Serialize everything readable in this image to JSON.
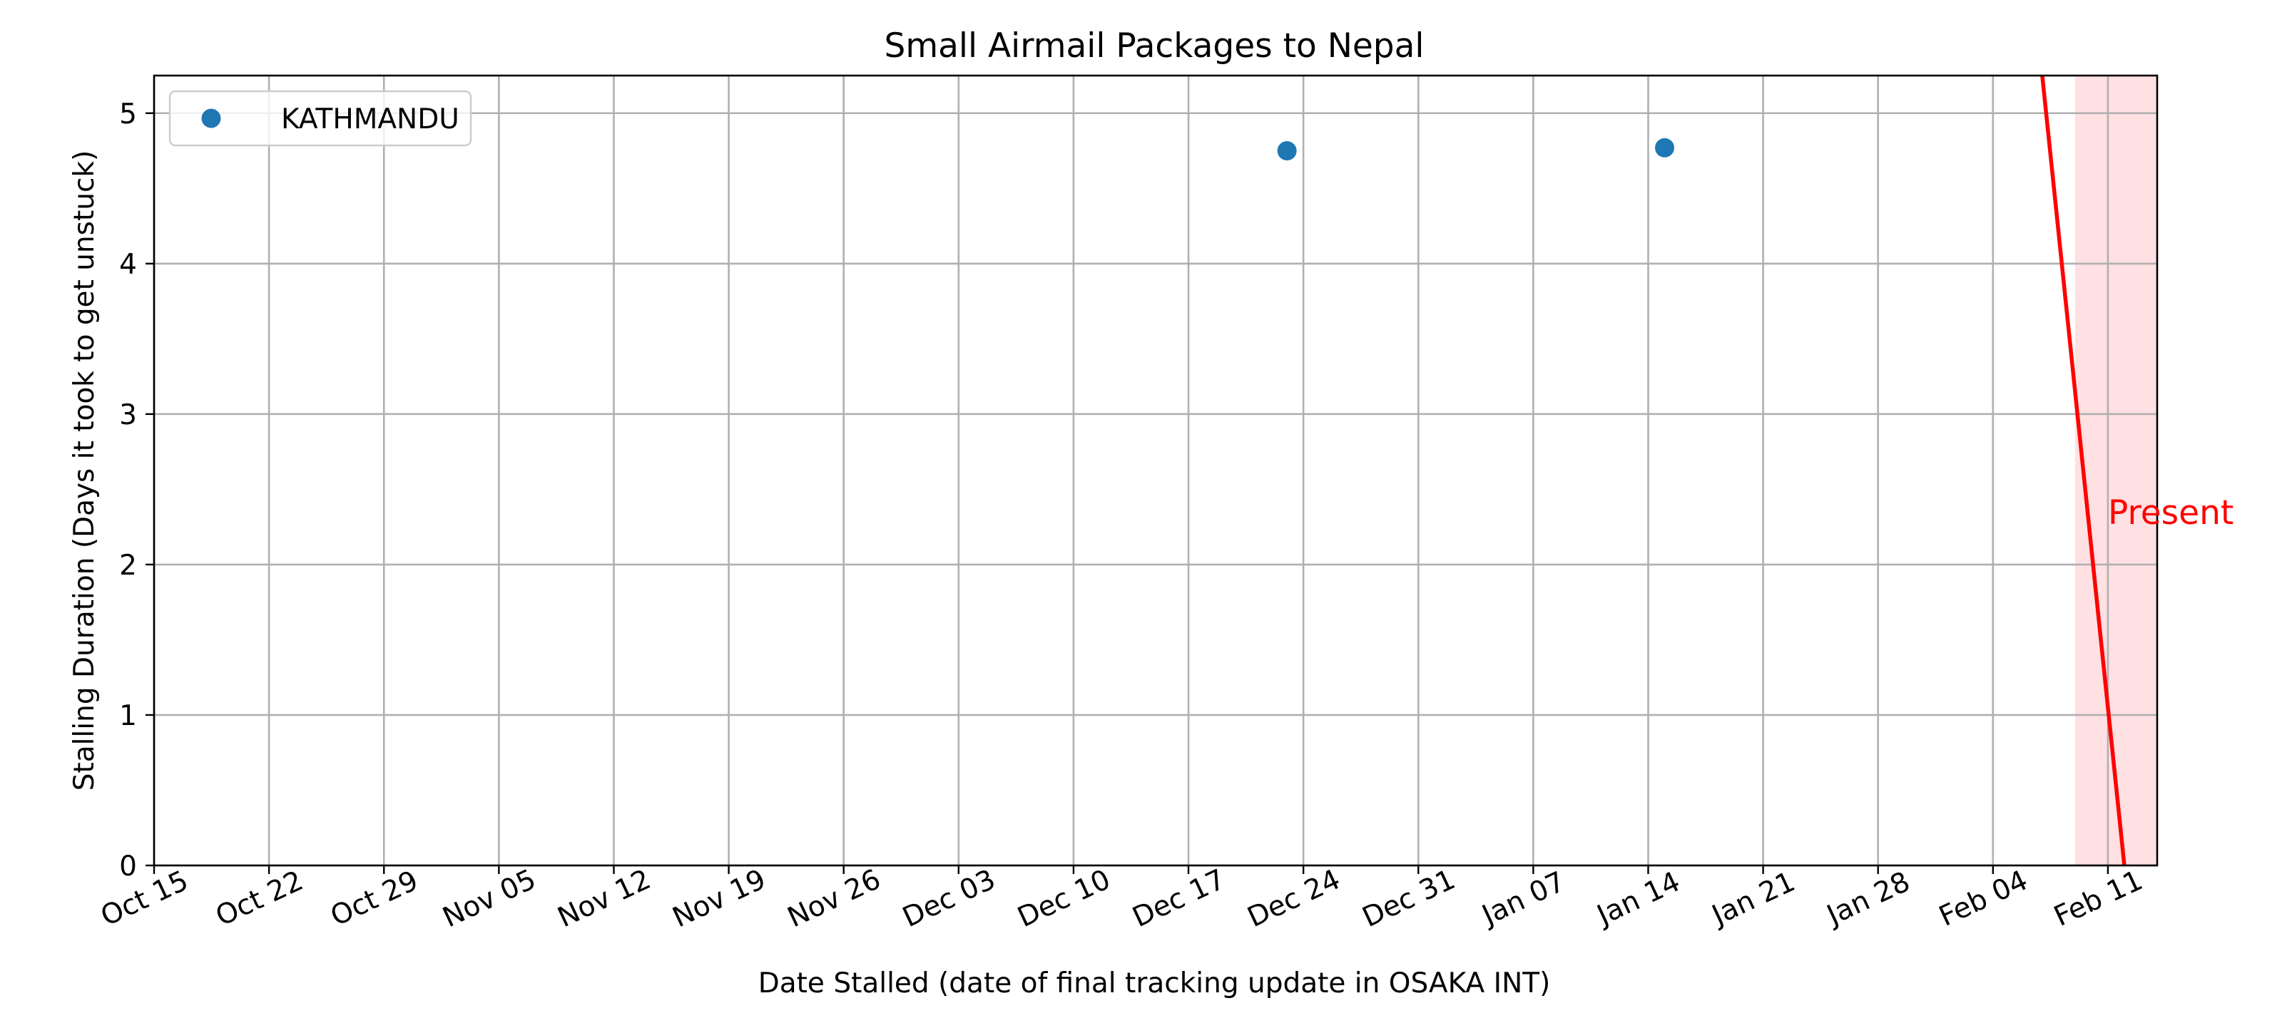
{
  "chart_data": {
    "type": "scatter",
    "title": "Small Airmail Packages to Nepal",
    "xlabel": "Date Stalled (date of final tracking update in OSAKA INT)",
    "ylabel": "Stalling Duration (Days it took to get unstuck)",
    "x_type": "date",
    "xlim": [
      "2023-10-15",
      "2024-02-14"
    ],
    "ylim": [
      0,
      5.25
    ],
    "x_ticks": [
      {
        "date": "2023-10-15",
        "label": "Oct 15"
      },
      {
        "date": "2023-10-22",
        "label": "Oct 22"
      },
      {
        "date": "2023-10-29",
        "label": "Oct 29"
      },
      {
        "date": "2023-11-05",
        "label": "Nov 05"
      },
      {
        "date": "2023-11-12",
        "label": "Nov 12"
      },
      {
        "date": "2023-11-19",
        "label": "Nov 19"
      },
      {
        "date": "2023-11-26",
        "label": "Nov 26"
      },
      {
        "date": "2023-12-03",
        "label": "Dec 03"
      },
      {
        "date": "2023-12-10",
        "label": "Dec 10"
      },
      {
        "date": "2023-12-17",
        "label": "Dec 17"
      },
      {
        "date": "2023-12-24",
        "label": "Dec 24"
      },
      {
        "date": "2023-12-31",
        "label": "Dec 31"
      },
      {
        "date": "2024-01-07",
        "label": "Jan 07"
      },
      {
        "date": "2024-01-14",
        "label": "Jan 14"
      },
      {
        "date": "2024-01-21",
        "label": "Jan 21"
      },
      {
        "date": "2024-01-28",
        "label": "Jan 28"
      },
      {
        "date": "2024-02-04",
        "label": "Feb 04"
      },
      {
        "date": "2024-02-11",
        "label": "Feb 11"
      }
    ],
    "y_ticks": [
      0,
      1,
      2,
      3,
      4,
      5
    ],
    "grid": true,
    "legend": "top-left",
    "series": [
      {
        "name": "KATHMANDU",
        "color": "#1f77b4",
        "points": [
          {
            "x": "2023-12-23",
            "y": 4.75
          },
          {
            "x": "2024-01-15",
            "y": 4.77
          }
        ]
      }
    ],
    "present_line": {
      "color": "#ff0000",
      "from": {
        "x": "2024-02-07",
        "y": 5.25
      },
      "to": {
        "x": "2024-02-12",
        "y": 0
      }
    },
    "present_region": {
      "color": "#ffe0e3",
      "x_start": "2024-02-09",
      "x_end": "2024-02-14"
    },
    "annotations": [
      {
        "text": "Present",
        "x": "2024-02-11",
        "y": 2.35,
        "color": "#ff0000"
      }
    ]
  }
}
